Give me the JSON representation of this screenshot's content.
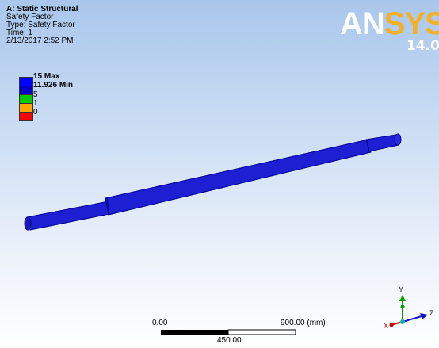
{
  "analysis": {
    "title": "A: Static Structural",
    "result_name": "Safety Factor",
    "type_line": "Type: Safety Factor",
    "time_line": "Time: 1",
    "date_line": "2/13/2017 2:52 PM"
  },
  "legend": {
    "max_label": "15 Max",
    "min_label": "11.926 Min",
    "levels": [
      "5",
      "1",
      "0"
    ],
    "colors": {
      "top": "#0000ff",
      "second": "#0000c8",
      "green": "#00c800",
      "orange": "#ffa500",
      "red": "#ff0000"
    }
  },
  "logo": {
    "prefix": "AN",
    "suffix": "SYS",
    "version": "14.0"
  },
  "scale_bar": {
    "left_label": "0.00",
    "right_label": "900.00 (mm)",
    "mid_label": "450.00"
  },
  "triad": {
    "x_label": "X",
    "y_label": "Y",
    "z_label": "Z"
  },
  "model": {
    "color": "#1e1ed2",
    "edge_color": "#00008c"
  }
}
